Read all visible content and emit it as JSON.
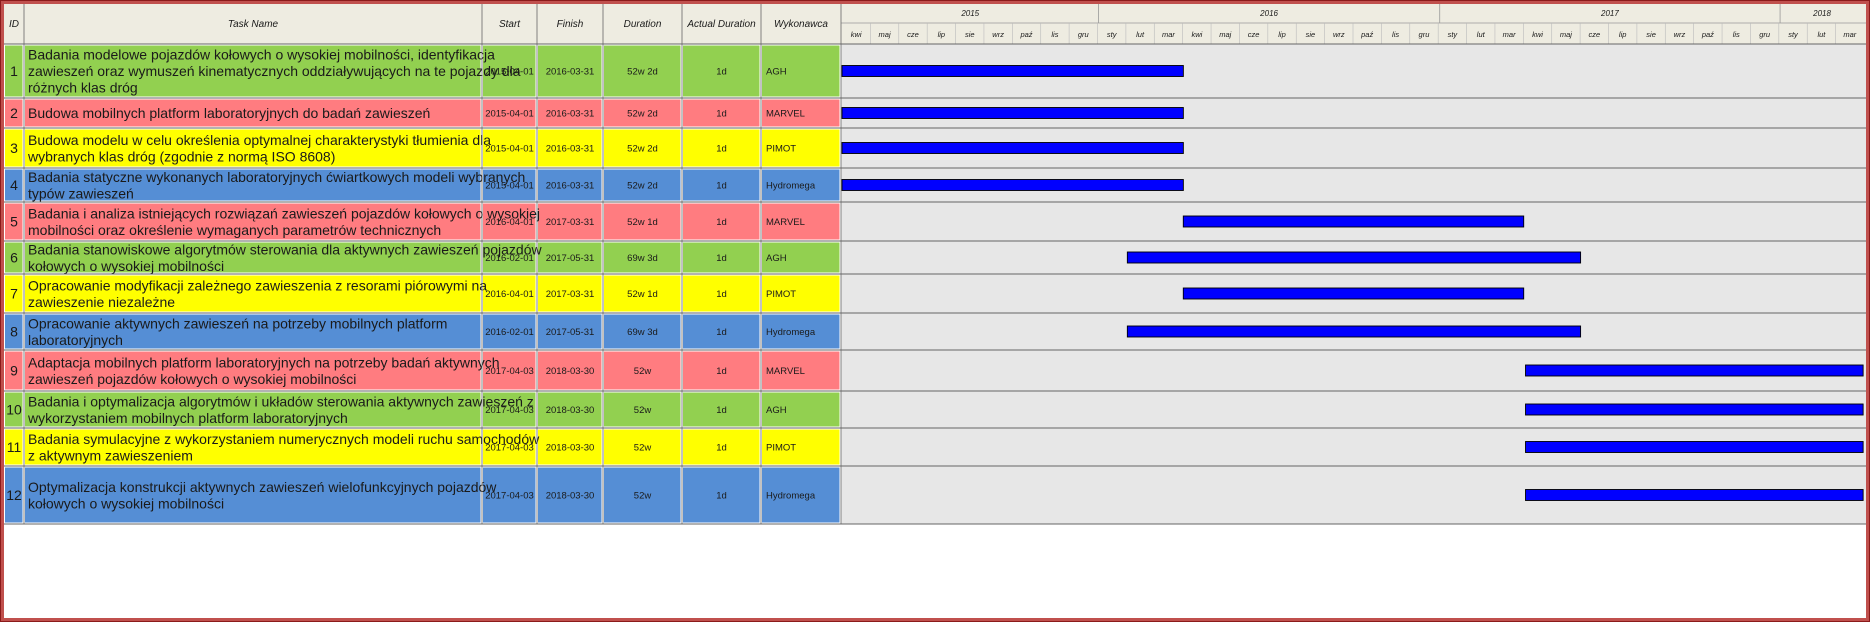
{
  "chart_data": {
    "type": "table",
    "columns": {
      "id": "ID",
      "task_name": "Task Name",
      "start": "Start",
      "finish": "Finish",
      "duration": "Duration",
      "actual_duration": "Actual Duration",
      "contractor": "Wykonawca"
    },
    "timeline": {
      "years": [
        {
          "label": "2015",
          "start": "2015-04-01",
          "end": "2016-01-01"
        },
        {
          "label": "2016",
          "start": "2016-01-01",
          "end": "2017-01-01"
        },
        {
          "label": "2017",
          "start": "2017-01-01",
          "end": "2018-01-01"
        },
        {
          "label": "2018",
          "start": "2018-01-01",
          "end": "2018-04-01"
        }
      ],
      "months": [
        "kwi",
        "maj",
        "cze",
        "lip",
        "sie",
        "wrz",
        "paź",
        "lis",
        "gru",
        "sty",
        "lut",
        "mar",
        "kwi",
        "maj",
        "cze",
        "lip",
        "sie",
        "wrz",
        "paź",
        "lis",
        "gru",
        "sty",
        "lut",
        "mar",
        "kwi",
        "maj",
        "cze",
        "lip",
        "sie",
        "wrz",
        "paź",
        "lis",
        "gru",
        "sty",
        "lut",
        "mar"
      ],
      "range_start": "2015-04-01",
      "range_end": "2018-04-01"
    },
    "colors": {
      "AGH": "#92d050",
      "MARVEL": "#ff7c80",
      "PIMOT": "#ffff00",
      "Hydromega": "#558ed5",
      "bar": "#0000ff",
      "timeline_bg": "#e7e7e7",
      "header_bg": "#eeece1"
    },
    "tasks": [
      {
        "id": "1",
        "lines": [
          "Badania modelowe pojazdów kołowych o wysokiej mobilności, identyfikacja",
          "zawieszeń oraz wymuszeń kinematycznych oddziaływujących na te pojazdy dla",
          "różnych klas dróg"
        ],
        "start": "2015-04-01",
        "finish": "2016-03-31",
        "duration": "52w 2d",
        "actual_duration": "1d",
        "contractor": "AGH"
      },
      {
        "id": "2",
        "lines": [
          "Budowa mobilnych platform laboratoryjnych do badań zawieszeń"
        ],
        "start": "2015-04-01",
        "finish": "2016-03-31",
        "duration": "52w 2d",
        "actual_duration": "1d",
        "contractor": "MARVEL"
      },
      {
        "id": "3",
        "lines": [
          "Budowa modelu w celu określenia optymalnej charakterystyki tłumienia dla",
          "wybranych klas dróg (zgodnie z normą ISO 8608)"
        ],
        "start": "2015-04-01",
        "finish": "2016-03-31",
        "duration": "52w 2d",
        "actual_duration": "1d",
        "contractor": "PIMOT"
      },
      {
        "id": "4",
        "lines": [
          "Badania statyczne wykonanych laboratoryjnych ćwiartkowych modeli wybranych",
          "typów zawieszeń"
        ],
        "start": "2015-04-01",
        "finish": "2016-03-31",
        "duration": "52w 2d",
        "actual_duration": "1d",
        "contractor": "Hydromega"
      },
      {
        "id": "5",
        "lines": [
          "Badania i analiza istniejących rozwiązań zawieszeń pojazdów kołowych o wysokiej",
          "mobilności oraz określenie wymaganych parametrów technicznych"
        ],
        "start": "2016-04-01",
        "finish": "2017-03-31",
        "duration": "52w 1d",
        "actual_duration": "1d",
        "contractor": "MARVEL"
      },
      {
        "id": "6",
        "lines": [
          "Badania stanowiskowe algorytmów sterowania dla aktywnych zawieszeń pojazdów",
          "kołowych o wysokiej mobilności"
        ],
        "start": "2016-02-01",
        "finish": "2017-05-31",
        "duration": "69w 3d",
        "actual_duration": "1d",
        "contractor": "AGH"
      },
      {
        "id": "7",
        "lines": [
          "Opracowanie modyfikacji zależnego zawieszenia z resorami piórowymi na",
          "zawieszenie niezależne"
        ],
        "start": "2016-04-01",
        "finish": "2017-03-31",
        "duration": "52w 1d",
        "actual_duration": "1d",
        "contractor": "PIMOT"
      },
      {
        "id": "8",
        "lines": [
          "Opracowanie aktywnych zawieszeń na potrzeby mobilnych platform",
          "laboratoryjnych"
        ],
        "start": "2016-02-01",
        "finish": "2017-05-31",
        "duration": "69w 3d",
        "actual_duration": "1d",
        "contractor": "Hydromega"
      },
      {
        "id": "9",
        "lines": [
          "Adaptacja mobilnych platform laboratoryjnych na potrzeby badań aktywnych",
          "zawieszeń pojazdów kołowych o wysokiej mobilności"
        ],
        "start": "2017-04-03",
        "finish": "2018-03-30",
        "duration": "52w",
        "actual_duration": "1d",
        "contractor": "MARVEL"
      },
      {
        "id": "10",
        "lines": [
          "Badania i optymalizacja algorytmów i układów sterowania aktywnych zawieszeń z",
          "wykorzystaniem mobilnych platform laboratoryjnych"
        ],
        "start": "2017-04-03",
        "finish": "2018-03-30",
        "duration": "52w",
        "actual_duration": "1d",
        "contractor": "AGH"
      },
      {
        "id": "11",
        "lines": [
          "Badania symulacyjne z wykorzystaniem numerycznych modeli ruchu samochodów",
          "z aktywnym zawieszeniem"
        ],
        "start": "2017-04-03",
        "finish": "2018-03-30",
        "duration": "52w",
        "actual_duration": "1d",
        "contractor": "PIMOT"
      },
      {
        "id": "12",
        "lines": [
          "Optymalizacja konstrukcji aktywnych zawieszeń wielofunkcyjnych pojazdów",
          "kołowych o wysokiej mobilności"
        ],
        "start": "2017-04-03",
        "finish": "2018-03-30",
        "duration": "52w",
        "actual_duration": "1d",
        "contractor": "Hydromega"
      }
    ]
  }
}
